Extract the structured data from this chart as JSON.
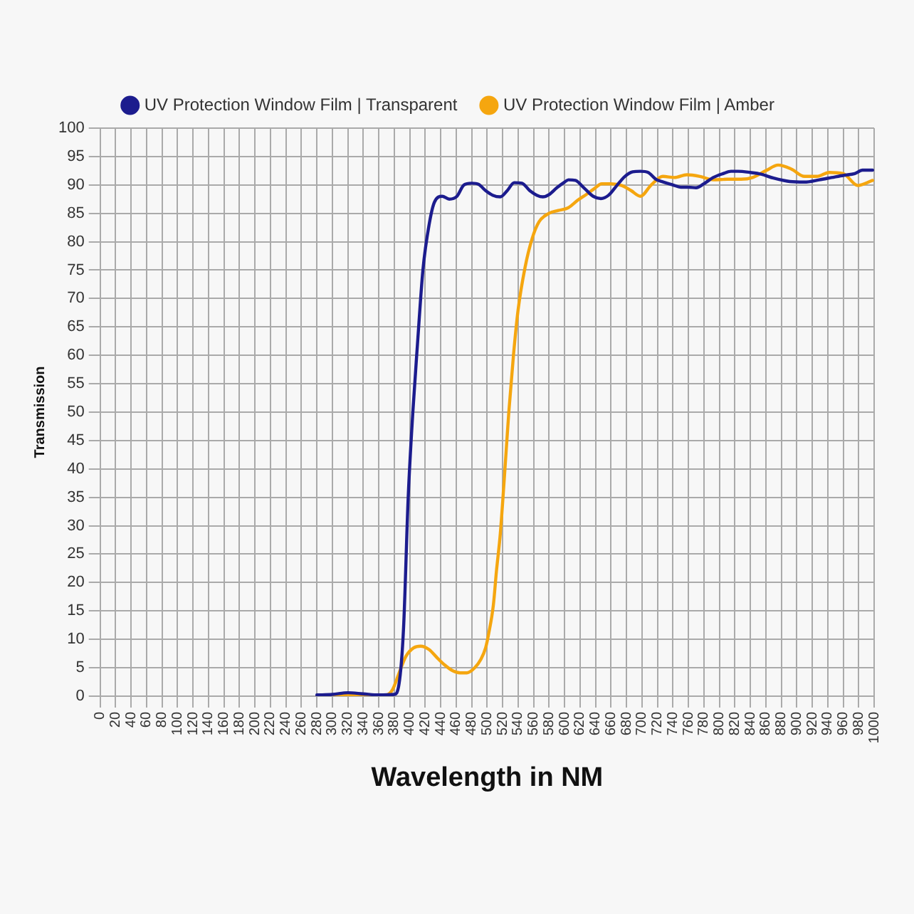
{
  "chart_data": {
    "type": "line",
    "xlabel": "Wavelength in NM",
    "ylabel": "Transmission",
    "xlim": [
      0,
      1000
    ],
    "xticks": [
      0,
      20,
      40,
      60,
      80,
      100,
      120,
      140,
      160,
      180,
      200,
      220,
      240,
      260,
      280,
      300,
      320,
      340,
      360,
      380,
      400,
      420,
      440,
      460,
      480,
      500,
      520,
      540,
      560,
      580,
      600,
      620,
      640,
      660,
      680,
      700,
      720,
      740,
      760,
      780,
      800,
      820,
      840,
      860,
      880,
      900,
      920,
      940,
      960,
      980,
      1000
    ],
    "ylim": [
      0,
      100
    ],
    "yticks": [
      0,
      5,
      10,
      15,
      20,
      25,
      30,
      35,
      40,
      45,
      50,
      55,
      60,
      65,
      70,
      75,
      80,
      85,
      90,
      95,
      100
    ],
    "grid": true,
    "legend": "top",
    "marker": "none",
    "line_style": "solid",
    "series": [
      {
        "name": "UV Protection Window Film | Transparent",
        "color": "#1c1c8e",
        "x": [
          280,
          300,
          320,
          340,
          360,
          380,
          386,
          392,
          398,
          404,
          410,
          417,
          425,
          432,
          442,
          451,
          461,
          470,
          480,
          489,
          498,
          507,
          517,
          526,
          535,
          545,
          555,
          564,
          572,
          580,
          590,
          600,
          605,
          614,
          625,
          637,
          647,
          657,
          667,
          678,
          688,
          698,
          708,
          718,
          728,
          740,
          750,
          760,
          770,
          780,
          792,
          805,
          815,
          824,
          840,
          854,
          870,
          891,
          910,
          929,
          945,
          961,
          975,
          985,
          998
        ],
        "values": [
          0.2,
          0.3,
          0.6,
          0.4,
          0.2,
          0.3,
          2,
          12,
          35,
          50,
          62,
          75,
          83,
          87,
          88,
          87.5,
          88,
          90,
          90.3,
          90.1,
          89,
          88.2,
          87.9,
          89,
          90.4,
          90.3,
          89,
          88.2,
          87.9,
          88.3,
          89.5,
          90.5,
          90.9,
          90.8,
          89.5,
          88,
          87.6,
          88.2,
          89.8,
          91.5,
          92.3,
          92.4,
          92.2,
          91,
          90.5,
          90,
          89.6,
          89.6,
          89.5,
          90.2,
          91.3,
          92,
          92.4,
          92.4,
          92.2,
          91.9,
          91.2,
          90.6,
          90.5,
          90.9,
          91.3,
          91.7,
          92,
          92.6,
          92.6
        ]
      },
      {
        "name": "UV Protection Window Film | Amber",
        "color": "#f5a60f",
        "x": [
          280,
          300,
          320,
          340,
          360,
          370,
          378,
          386,
          395,
          405,
          414,
          425,
          435,
          445,
          455,
          465,
          474,
          484,
          492,
          498,
          502,
          508,
          512,
          517,
          522,
          528,
          534,
          540,
          549,
          558,
          567,
          580,
          592,
          605,
          617,
          629,
          638,
          648,
          660,
          674,
          686,
          698,
          712,
          727,
          742,
          758,
          775,
          792,
          810,
          828,
          843,
          860,
          876,
          893,
          910,
          926,
          942,
          960,
          979,
          998
        ],
        "values": [
          0,
          0.1,
          0.2,
          0.2,
          0.1,
          0.2,
          1.2,
          4,
          7,
          8.5,
          8.8,
          8.2,
          6.8,
          5.5,
          4.5,
          4.1,
          4.1,
          5,
          6.5,
          8.5,
          11,
          16,
          22,
          28.6,
          38,
          50,
          60,
          68,
          75.5,
          80.5,
          83.5,
          85,
          85.5,
          86,
          87.3,
          88.4,
          89.3,
          90.2,
          90.2,
          89.9,
          89,
          88,
          90,
          91.5,
          91.3,
          91.8,
          91.5,
          90.9,
          91,
          91,
          91.3,
          92.5,
          93.5,
          92.8,
          91.5,
          91.5,
          92.2,
          92,
          89.9,
          90.8
        ]
      }
    ]
  }
}
